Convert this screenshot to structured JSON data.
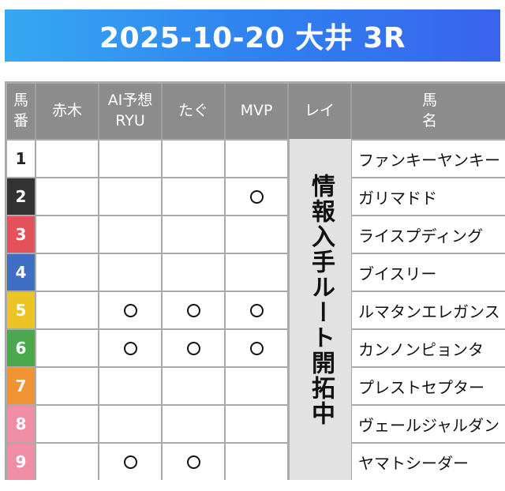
{
  "title": "2025-10-20 大井 3R",
  "headers": {
    "num_line1": "馬",
    "num_line2": "番",
    "akagi": "赤木",
    "ai_line1": "AI予想",
    "ai_line2": "RYU",
    "tagu": "たぐ",
    "mvp": "MVP",
    "rei": "レイ",
    "name_line1": "馬",
    "name_line2": "名"
  },
  "rei_note": "情報入手ルート開拓中",
  "mark_symbol": "circle",
  "rows": [
    {
      "num": "1",
      "color": "#ffffff",
      "name": "ファンキーヤンキー",
      "akagi": false,
      "ai": false,
      "tagu": false,
      "mvp": false
    },
    {
      "num": "2",
      "color": "#333333",
      "name": "ガリマドド",
      "akagi": false,
      "ai": false,
      "tagu": false,
      "mvp": true
    },
    {
      "num": "3",
      "color": "#e5515b",
      "name": "ライスプディング",
      "akagi": false,
      "ai": false,
      "tagu": false,
      "mvp": false
    },
    {
      "num": "4",
      "color": "#3f6fc2",
      "name": "ブイスリー",
      "akagi": false,
      "ai": false,
      "tagu": false,
      "mvp": false
    },
    {
      "num": "5",
      "color": "#ecc424",
      "name": "ルマタンエレガンス",
      "akagi": false,
      "ai": true,
      "tagu": true,
      "mvp": true
    },
    {
      "num": "6",
      "color": "#4aa84d",
      "name": "カンノンピョンタ",
      "akagi": false,
      "ai": true,
      "tagu": true,
      "mvp": true
    },
    {
      "num": "7",
      "color": "#ef9334",
      "name": "プレストセプター",
      "akagi": false,
      "ai": false,
      "tagu": false,
      "mvp": false
    },
    {
      "num": "8",
      "color": "#ef8da6",
      "name": "ヴェールジャルダン",
      "akagi": false,
      "ai": false,
      "tagu": false,
      "mvp": false
    },
    {
      "num": "9",
      "color": "#ef8da6",
      "name": "ヤマトシーダー",
      "akagi": false,
      "ai": true,
      "tagu": true,
      "mvp": false
    }
  ]
}
